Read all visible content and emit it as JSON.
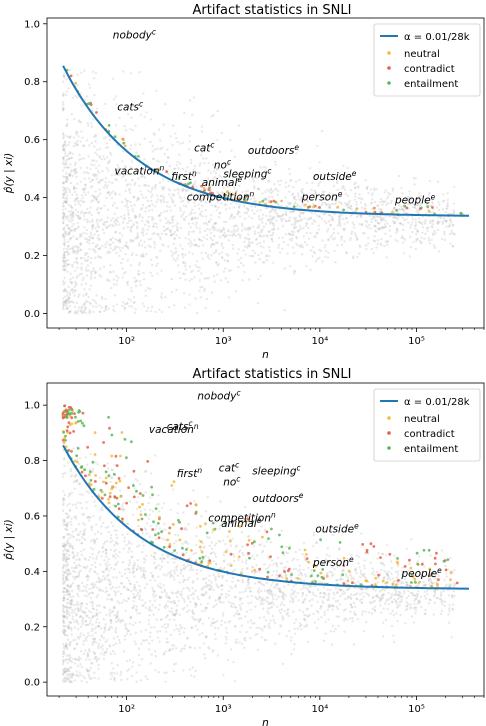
{
  "chart_data": [
    {
      "type": "scatter",
      "title": "Artifact statistics in SNLI",
      "xlabel": "n",
      "ylabel": "p̂(y | xi)",
      "xscale": "log",
      "xlim": [
        15,
        500000
      ],
      "ylim": [
        -0.05,
        1.02
      ],
      "xticks": [
        {
          "value": 100,
          "label": "10²"
        },
        {
          "value": 1000,
          "label": "10³"
        },
        {
          "value": 10000,
          "label": "10⁴"
        },
        {
          "value": 100000,
          "label": "10⁵"
        }
      ],
      "yticks": [
        0.0,
        0.2,
        0.4,
        0.6,
        0.8,
        1.0
      ],
      "grid": false,
      "legend_position": "top-right",
      "curve": {
        "name": "α = 0.01/28k",
        "color": "#1f77b4"
      },
      "series": [
        {
          "name": "neutral",
          "color": "#f5b942"
        },
        {
          "name": "contradict",
          "color": "#e8604a"
        },
        {
          "name": "entailment",
          "color": "#5cb85c"
        }
      ],
      "annotations": [
        {
          "word": "nobody",
          "sup": "c",
          "x": 72,
          "y": 0.95
        },
        {
          "word": "cats",
          "sup": "c",
          "x": 80,
          "y": 0.7
        },
        {
          "word": "cat",
          "sup": "c",
          "x": 500,
          "y": 0.56
        },
        {
          "word": "outdoors",
          "sup": "e",
          "x": 1800,
          "y": 0.55
        },
        {
          "word": "no",
          "sup": "c",
          "x": 800,
          "y": 0.5
        },
        {
          "word": "vacation",
          "sup": "n",
          "x": 75,
          "y": 0.48
        },
        {
          "word": "sleeping",
          "sup": "c",
          "x": 1000,
          "y": 0.47
        },
        {
          "word": "outside",
          "sup": "e",
          "x": 8500,
          "y": 0.46
        },
        {
          "word": "first",
          "sup": "n",
          "x": 290,
          "y": 0.46
        },
        {
          "word": "animal",
          "sup": "e",
          "x": 600,
          "y": 0.44
        },
        {
          "word": "competition",
          "sup": "n",
          "x": 420,
          "y": 0.39
        },
        {
          "word": "person",
          "sup": "e",
          "x": 6500,
          "y": 0.39
        },
        {
          "word": "people",
          "sup": "e",
          "x": 60000,
          "y": 0.38
        }
      ]
    },
    {
      "type": "scatter",
      "title": "Artifact statistics in SNLI",
      "xlabel": "n",
      "ylabel": "p̂(y | xi)",
      "xscale": "log",
      "xlim": [
        15,
        500000
      ],
      "ylim": [
        -0.05,
        1.08
      ],
      "xticks": [
        {
          "value": 100,
          "label": "10²"
        },
        {
          "value": 1000,
          "label": "10³"
        },
        {
          "value": 10000,
          "label": "10⁴"
        },
        {
          "value": 100000,
          "label": "10⁵"
        }
      ],
      "yticks": [
        0.0,
        0.2,
        0.4,
        0.6,
        0.8,
        1.0
      ],
      "grid": false,
      "legend_position": "top-right",
      "curve": {
        "name": "α = 0.01/28k",
        "color": "#1f77b4"
      },
      "series": [
        {
          "name": "neutral",
          "color": "#f5b942"
        },
        {
          "name": "contradict",
          "color": "#e8604a"
        },
        {
          "name": "entailment",
          "color": "#5cb85c"
        }
      ],
      "annotations": [
        {
          "word": "nobody",
          "sup": "c",
          "x": 540,
          "y": 1.02
        },
        {
          "word": "vacation",
          "sup": "n",
          "x": 170,
          "y": 0.9
        },
        {
          "word": "cats",
          "sup": "c",
          "x": 260,
          "y": 0.91
        },
        {
          "word": "cat",
          "sup": "c",
          "x": 900,
          "y": 0.76
        },
        {
          "word": "sleeping",
          "sup": "c",
          "x": 2000,
          "y": 0.75
        },
        {
          "word": "first",
          "sup": "n",
          "x": 330,
          "y": 0.74
        },
        {
          "word": "no",
          "sup": "c",
          "x": 1000,
          "y": 0.71
        },
        {
          "word": "outdoors",
          "sup": "e",
          "x": 2000,
          "y": 0.65
        },
        {
          "word": "competition",
          "sup": "n",
          "x": 700,
          "y": 0.58
        },
        {
          "word": "animal",
          "sup": "e",
          "x": 950,
          "y": 0.56
        },
        {
          "word": "outside",
          "sup": "e",
          "x": 9000,
          "y": 0.54
        },
        {
          "word": "person",
          "sup": "e",
          "x": 8500,
          "y": 0.42
        },
        {
          "word": "people",
          "sup": "e",
          "x": 70000,
          "y": 0.38
        }
      ]
    }
  ]
}
